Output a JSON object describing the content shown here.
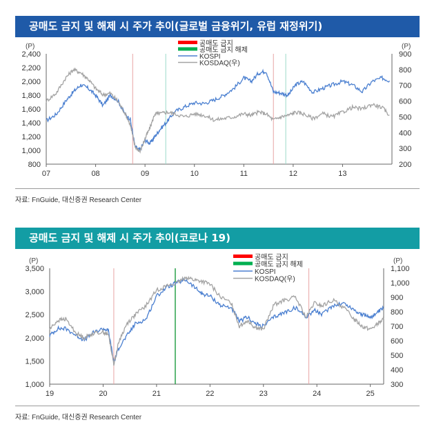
{
  "charts": [
    {
      "title": "공매도 금지 및 해제 시 주가 추이(글로벌 금융위기, 유럽 재정위기)",
      "source": "자료: FnGuide, 대신증권 Research Center"
    },
    {
      "title": "공매도 금지 및 해제 시 주가 추이(코로나 19)",
      "source": "자료: FnGuide, 대신증권 Research Center"
    }
  ],
  "colors": {
    "ban": "#e8a3a3",
    "lift": "#9bd9c9",
    "lift_strong": "#1a9a3c",
    "kospi": "#4a7fd0",
    "kosdaq": "#a3a3a3",
    "legend_red": "#ff0000",
    "legend_green": "#00b050"
  },
  "chart_data": [
    {
      "type": "line",
      "x_tick_labels": [
        "07",
        "08",
        "09",
        "10",
        "11",
        "12",
        "13"
      ],
      "y_left_unit": "(P)",
      "y_right_unit": "(P)",
      "y_left_ticks": [
        "800",
        "1,000",
        "1,200",
        "1,400",
        "1,600",
        "1,800",
        "2,000",
        "2,200",
        "2,400"
      ],
      "y_right_ticks": [
        "200",
        "300",
        "400",
        "500",
        "600",
        "700",
        "800",
        "900"
      ],
      "ylim_left": [
        800,
        2400
      ],
      "ylim_right": [
        200,
        900
      ],
      "xlim": [
        2007.0,
        2014.0
      ],
      "legend": [
        "공매도 금지",
        "공매도 금지 해제",
        "KOSPI",
        "KOSDAQ(우)"
      ],
      "events": [
        {
          "kind": "ban",
          "x": 2008.75
        },
        {
          "kind": "lift",
          "x": 2009.42
        },
        {
          "kind": "ban",
          "x": 2011.6
        },
        {
          "kind": "lift",
          "x": 2011.85
        }
      ],
      "series": [
        {
          "name": "KOSPI",
          "axis": "left",
          "x": [
            2007.0,
            2007.2,
            2007.4,
            2007.55,
            2007.7,
            2007.85,
            2008.0,
            2008.15,
            2008.3,
            2008.45,
            2008.6,
            2008.7,
            2008.8,
            2008.9,
            2009.0,
            2009.1,
            2009.2,
            2009.3,
            2009.45,
            2009.6,
            2009.8,
            2010.0,
            2010.2,
            2010.4,
            2010.6,
            2010.8,
            2011.0,
            2011.15,
            2011.3,
            2011.45,
            2011.6,
            2011.75,
            2011.9,
            2012.05,
            2012.2,
            2012.4,
            2012.6,
            2012.8,
            2013.0,
            2013.2,
            2013.4,
            2013.6,
            2013.8,
            2013.95
          ],
          "values": [
            1430,
            1520,
            1720,
            1850,
            1950,
            1900,
            1800,
            1650,
            1800,
            1720,
            1520,
            1450,
            1050,
            1000,
            1150,
            1100,
            1200,
            1300,
            1420,
            1560,
            1630,
            1690,
            1680,
            1730,
            1800,
            1900,
            2050,
            2000,
            2120,
            2150,
            1850,
            1830,
            1800,
            1950,
            2000,
            1840,
            1900,
            1950,
            2000,
            1950,
            1850,
            2000,
            2050,
            2010
          ]
        },
        {
          "name": "KOSDAQ(우)",
          "axis": "right",
          "x": [
            2007.0,
            2007.2,
            2007.4,
            2007.55,
            2007.7,
            2007.85,
            2008.0,
            2008.15,
            2008.3,
            2008.45,
            2008.6,
            2008.7,
            2008.8,
            2008.9,
            2009.0,
            2009.1,
            2009.2,
            2009.3,
            2009.45,
            2009.6,
            2009.8,
            2010.0,
            2010.2,
            2010.4,
            2010.6,
            2010.8,
            2011.0,
            2011.15,
            2011.3,
            2011.45,
            2011.6,
            2011.75,
            2011.9,
            2012.05,
            2012.2,
            2012.4,
            2012.6,
            2012.8,
            2013.0,
            2013.2,
            2013.4,
            2013.6,
            2013.8,
            2013.95
          ],
          "values": [
            600,
            650,
            750,
            800,
            780,
            740,
            680,
            640,
            650,
            600,
            520,
            450,
            310,
            280,
            360,
            430,
            520,
            520,
            530,
            520,
            500,
            520,
            510,
            480,
            490,
            500,
            520,
            510,
            530,
            520,
            480,
            500,
            510,
            530,
            520,
            490,
            520,
            500,
            530,
            560,
            550,
            580,
            560,
            510
          ]
        }
      ]
    },
    {
      "type": "line",
      "x_tick_labels": [
        "19",
        "20",
        "21",
        "22",
        "23",
        "24",
        "25"
      ],
      "y_left_unit": "(P)",
      "y_right_unit": "(P)",
      "y_left_ticks": [
        "1,000",
        "1,500",
        "2,000",
        "2,500",
        "3,000",
        "3,500"
      ],
      "y_right_ticks": [
        "300",
        "400",
        "500",
        "600",
        "700",
        "800",
        "900",
        "1,000",
        "1,100"
      ],
      "ylim_left": [
        1000,
        3500
      ],
      "ylim_right": [
        300,
        1100
      ],
      "xlim": [
        2019.0,
        2025.25
      ],
      "legend": [
        "공매도 금지",
        "공매도 금지 해제",
        "KOSPI",
        "KOSDAQ(우)"
      ],
      "events": [
        {
          "kind": "ban",
          "x": 2020.2
        },
        {
          "kind": "lift_strong",
          "x": 2021.35
        },
        {
          "kind": "ban",
          "x": 2023.85
        }
      ],
      "series": [
        {
          "name": "KOSPI",
          "axis": "left",
          "x": [
            2019.0,
            2019.15,
            2019.3,
            2019.5,
            2019.65,
            2019.8,
            2020.0,
            2020.1,
            2020.2,
            2020.3,
            2020.45,
            2020.6,
            2020.8,
            2021.0,
            2021.2,
            2021.4,
            2021.55,
            2021.7,
            2021.85,
            2022.0,
            2022.2,
            2022.4,
            2022.55,
            2022.7,
            2022.85,
            2023.0,
            2023.2,
            2023.4,
            2023.6,
            2023.8,
            2023.95,
            2024.1,
            2024.3,
            2024.5,
            2024.7,
            2024.85,
            2025.0,
            2025.15,
            2025.25
          ],
          "values": [
            2050,
            2200,
            2200,
            2050,
            1950,
            2100,
            2200,
            2150,
            1480,
            1800,
            2050,
            2300,
            2400,
            2900,
            3100,
            3200,
            3250,
            3100,
            2950,
            2900,
            2700,
            2650,
            2350,
            2450,
            2300,
            2250,
            2450,
            2550,
            2650,
            2450,
            2600,
            2500,
            2700,
            2750,
            2600,
            2500,
            2450,
            2550,
            2650
          ]
        },
        {
          "name": "KOSDAQ(우)",
          "axis": "right",
          "x": [
            2019.0,
            2019.15,
            2019.3,
            2019.5,
            2019.65,
            2019.8,
            2020.0,
            2020.1,
            2020.2,
            2020.3,
            2020.45,
            2020.6,
            2020.8,
            2021.0,
            2021.2,
            2021.4,
            2021.55,
            2021.7,
            2021.85,
            2022.0,
            2022.2,
            2022.4,
            2022.55,
            2022.7,
            2022.85,
            2023.0,
            2023.2,
            2023.4,
            2023.6,
            2023.8,
            2023.95,
            2024.1,
            2024.3,
            2024.5,
            2024.7,
            2024.85,
            2025.0,
            2025.15,
            2025.25
          ],
          "values": [
            680,
            740,
            750,
            650,
            620,
            650,
            660,
            640,
            440,
            600,
            720,
            780,
            840,
            950,
            980,
            1000,
            1040,
            1020,
            1010,
            990,
            900,
            860,
            700,
            740,
            690,
            680,
            850,
            880,
            900,
            760,
            860,
            840,
            880,
            830,
            750,
            700,
            680,
            720,
            750
          ]
        }
      ]
    }
  ]
}
